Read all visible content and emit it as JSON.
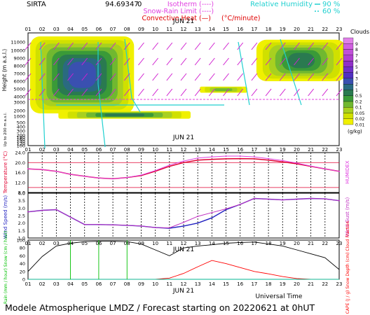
{
  "header": {
    "site": "SIRTA",
    "site_value": "94.69347",
    "site_value_suffix": "0",
    "legend_items": [
      {
        "label": "Isotherm",
        "sample": "(----)",
        "color": "#e040e0"
      },
      {
        "label": "Snow-Rain Limit",
        "sample": "(----)",
        "color": "#e040e0"
      },
      {
        "label": "Convective Heat",
        "sample": "(—)",
        "unit": "(°C/minute)",
        "color": "#e00000"
      }
    ],
    "humidity": {
      "label": "Relative Humidity",
      "values": [
        "90 %",
        "60 %"
      ],
      "color": "#20d0d0"
    }
  },
  "time_axis": {
    "hours": [
      "01",
      "02",
      "03",
      "04",
      "05",
      "06",
      "07",
      "08",
      "09",
      "10",
      "11",
      "12",
      "13",
      "14",
      "15",
      "16",
      "17",
      "18",
      "19",
      "20",
      "21",
      "22",
      "23"
    ],
    "date_label": "JUN 21",
    "xlabel": "Universal Time"
  },
  "colors": {
    "temperature": "#e00030",
    "humidex": "#e040e0",
    "wind_speed": "#2020c0",
    "wind_gust": "#c030c0",
    "rain": "#00c000",
    "snow": "#00c0c0",
    "cloud_fraction": "#000000",
    "cape": "#ff0000",
    "freezing_level": "#e040e0",
    "humidity_contour": "#20d0d0"
  },
  "clouds_colorbar": {
    "title": "Clouds",
    "unit": "(g/kg)",
    "levels": [
      "0.01",
      "0.02",
      "0.05",
      "0.1",
      "0.2",
      "0.5",
      "1",
      "2",
      "3",
      "4",
      "5",
      "6",
      "7",
      "8",
      "9"
    ],
    "colors": [
      "#f0f000",
      "#d0e000",
      "#a8d020",
      "#70b830",
      "#3a9a38",
      "#2a7a50",
      "#2a6a80",
      "#3a50b0",
      "#5030c0",
      "#7030c8",
      "#9030c8",
      "#b040d0",
      "#c050d8",
      "#d060e0",
      "#e080e8"
    ]
  },
  "chart_data": [
    {
      "type": "heatmap",
      "title": "",
      "ylabel": "Height (m a.s.l.)",
      "ylabel_lower": "Up to 200 m a.s.l.",
      "y_ticks": [
        "11000",
        "10000",
        "9000",
        "8000",
        "7000",
        "6000",
        "5000",
        "4000",
        "3000",
        "2000",
        "1000",
        "500",
        "400",
        "300",
        "200",
        "180",
        "160",
        "140",
        "120",
        "100"
      ],
      "freezing_level_m": 3500,
      "cloud_regions": [
        {
          "hours": [
            1,
            8
          ],
          "top_m": 11500,
          "bottom_m": 1500,
          "max_gkg": 2
        },
        {
          "hours": [
            3,
            12
          ],
          "top_m": 1900,
          "bottom_m": 800,
          "max_gkg": 0.5
        },
        {
          "hours": [
            13,
            16
          ],
          "top_m": 5300,
          "bottom_m": 4500,
          "max_gkg": 0.1
        },
        {
          "hours": [
            17,
            23
          ],
          "top_m": 11200,
          "bottom_m": 6000,
          "max_gkg": 0.5
        }
      ]
    },
    {
      "type": "line",
      "ylabel_left": "Temperature (°C)",
      "ylabel_right": "HUMIDEX",
      "y_ticks": [
        "24.0",
        "20.0",
        "16.0",
        "12.0",
        "8.0"
      ],
      "ylim": [
        8,
        24
      ],
      "x": [
        1,
        2,
        3,
        4,
        5,
        6,
        7,
        8,
        9,
        10,
        11,
        12,
        13,
        14,
        15,
        16,
        17,
        18,
        19,
        20,
        21,
        22,
        23
      ],
      "series": [
        {
          "name": "Temperature",
          "values": [
            17.5,
            17.2,
            16.5,
            15.3,
            14.5,
            13.8,
            13.5,
            14.0,
            14.8,
            16.5,
            18.5,
            20.0,
            21.0,
            21.3,
            21.5,
            21.6,
            21.5,
            21.0,
            20.3,
            19.5,
            18.5,
            17.5,
            16.5
          ]
        },
        {
          "name": "Humidex",
          "values": [
            17.5,
            17.2,
            16.5,
            15.3,
            14.5,
            13.8,
            13.5,
            14.0,
            15.0,
            16.8,
            19.0,
            20.6,
            21.8,
            22.3,
            22.6,
            22.6,
            22.3,
            21.6,
            20.8,
            19.8,
            18.6,
            17.5,
            16.5
          ]
        }
      ]
    },
    {
      "type": "line",
      "ylabel_left": "Wind Speed (m/s)",
      "ylabel_right": "Wind Gust (m/s)",
      "y_ticks": [
        "4.0",
        "3.5",
        "3.0",
        "2.5",
        "2.0",
        "1.5",
        "1.0"
      ],
      "ylim": [
        1.0,
        4.0
      ],
      "x": [
        1,
        2,
        3,
        4,
        5,
        6,
        7,
        8,
        9,
        10,
        11,
        12,
        13,
        14,
        15,
        16,
        17,
        18,
        19,
        20,
        21,
        22,
        23
      ],
      "series": [
        {
          "name": "Wind speed",
          "values": [
            2.75,
            2.85,
            2.9,
            2.4,
            1.9,
            1.9,
            1.88,
            1.85,
            1.8,
            1.7,
            1.65,
            1.8,
            2.0,
            2.35,
            2.9,
            3.25,
            3.65,
            3.6,
            3.55,
            3.6,
            3.65,
            3.62,
            3.5
          ]
        },
        {
          "name": "Wind gust",
          "values": [
            2.75,
            2.85,
            2.9,
            2.4,
            1.9,
            1.9,
            1.88,
            1.85,
            1.8,
            1.7,
            1.68,
            2.05,
            2.45,
            2.7,
            2.95,
            3.25,
            3.65,
            3.6,
            3.55,
            3.6,
            3.65,
            3.62,
            3.5
          ]
        }
      ]
    },
    {
      "type": "line",
      "ylabel_left": "Rain (mm / hour) Snow (cm / hour)",
      "ylabel_right": "CAPE (J / g) Snow Depth (cm) Cloud Fraction",
      "y_ticks": [
        "100",
        "80",
        "60",
        "40",
        "20",
        "0"
      ],
      "ylim": [
        0,
        100
      ],
      "x": [
        1,
        2,
        3,
        4,
        5,
        6,
        7,
        8,
        9,
        10,
        11,
        12,
        13,
        14,
        15,
        16,
        17,
        18,
        19,
        20,
        21,
        22,
        23
      ],
      "series": [
        {
          "name": "Cloud fraction",
          "values": [
            20,
            58,
            85,
            92,
            96,
            97,
            97,
            96,
            90,
            75,
            60,
            80,
            85,
            88,
            92,
            94,
            95,
            90,
            85,
            75,
            65,
            55,
            25
          ]
        },
        {
          "name": "CAPE",
          "values": [
            0,
            0,
            0,
            0,
            0,
            0,
            0,
            0,
            0,
            0,
            3,
            15,
            32,
            48,
            40,
            30,
            20,
            14,
            7,
            2,
            0,
            0,
            0
          ]
        },
        {
          "name": "Rain",
          "values": [
            0,
            0,
            0,
            0,
            0,
            0,
            0,
            0,
            0,
            0,
            0,
            0,
            0,
            0,
            0,
            0,
            0,
            0,
            0,
            0,
            0,
            0,
            0
          ]
        },
        {
          "name": "Snow",
          "values": [
            0,
            0,
            0,
            0,
            0,
            0,
            0,
            0,
            0,
            0,
            0,
            0,
            0,
            0,
            0,
            0,
            0,
            0,
            0,
            0,
            0,
            0,
            0
          ]
        }
      ],
      "rain_spikes_at_hours": [
        4,
        6,
        8
      ]
    }
  ],
  "footer": {
    "title": "Modele Atmospherique LMDZ / Forecast starting on 20220621 at 0hUT"
  }
}
